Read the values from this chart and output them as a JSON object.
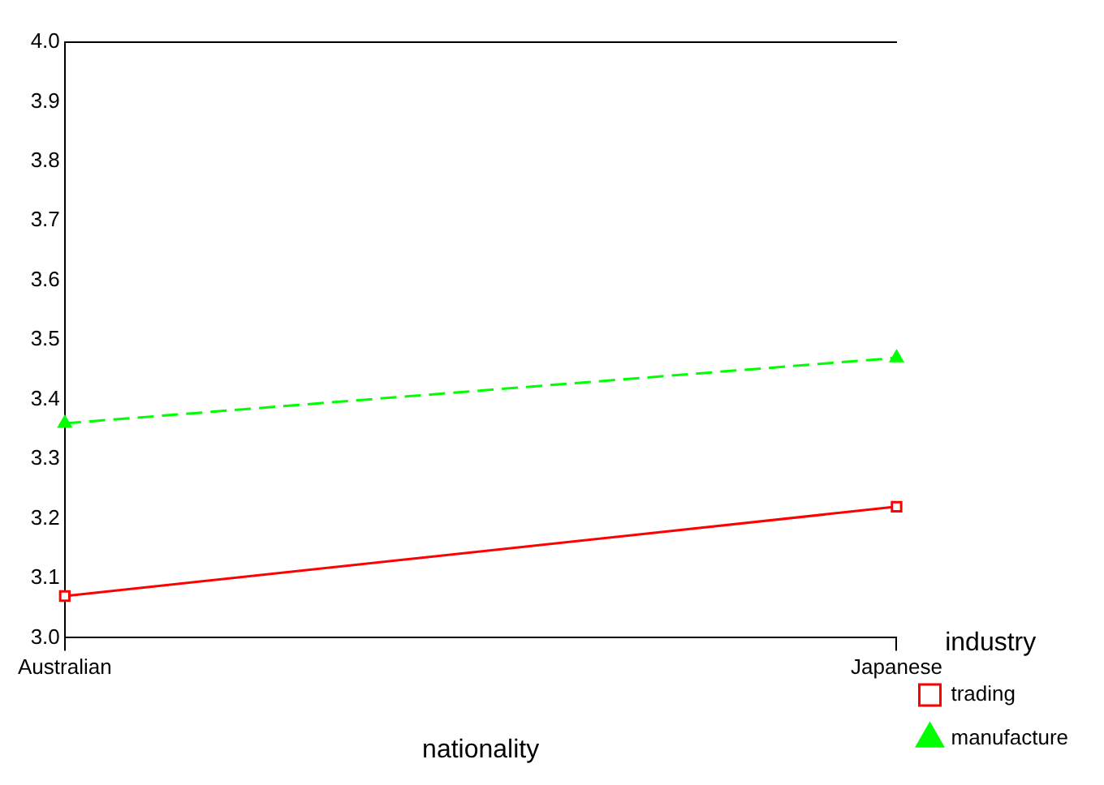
{
  "chart_data": {
    "type": "line",
    "xlabel": "nationality",
    "legend_title": "industry",
    "legend": "right",
    "grid": false,
    "categories": [
      "Australian",
      "Japanese"
    ],
    "ylim": [
      3.0,
      4.0
    ],
    "yticks": [
      {
        "value": 3,
        "label": "3.0"
      },
      3.1,
      3.2,
      3.3,
      3.4,
      3.5,
      3.6,
      3.7,
      3.8,
      3.9,
      {
        "value": 4,
        "label": "4.0"
      }
    ],
    "series": [
      {
        "name": "trading",
        "color": "#ff0000",
        "values": [
          3.07,
          3.22
        ],
        "marker": "square",
        "line_style": "solid"
      },
      {
        "name": "manufacture",
        "color": "#00ff00",
        "values": [
          3.36,
          3.47
        ],
        "marker": "triangle",
        "line_style": "dashed"
      }
    ]
  }
}
